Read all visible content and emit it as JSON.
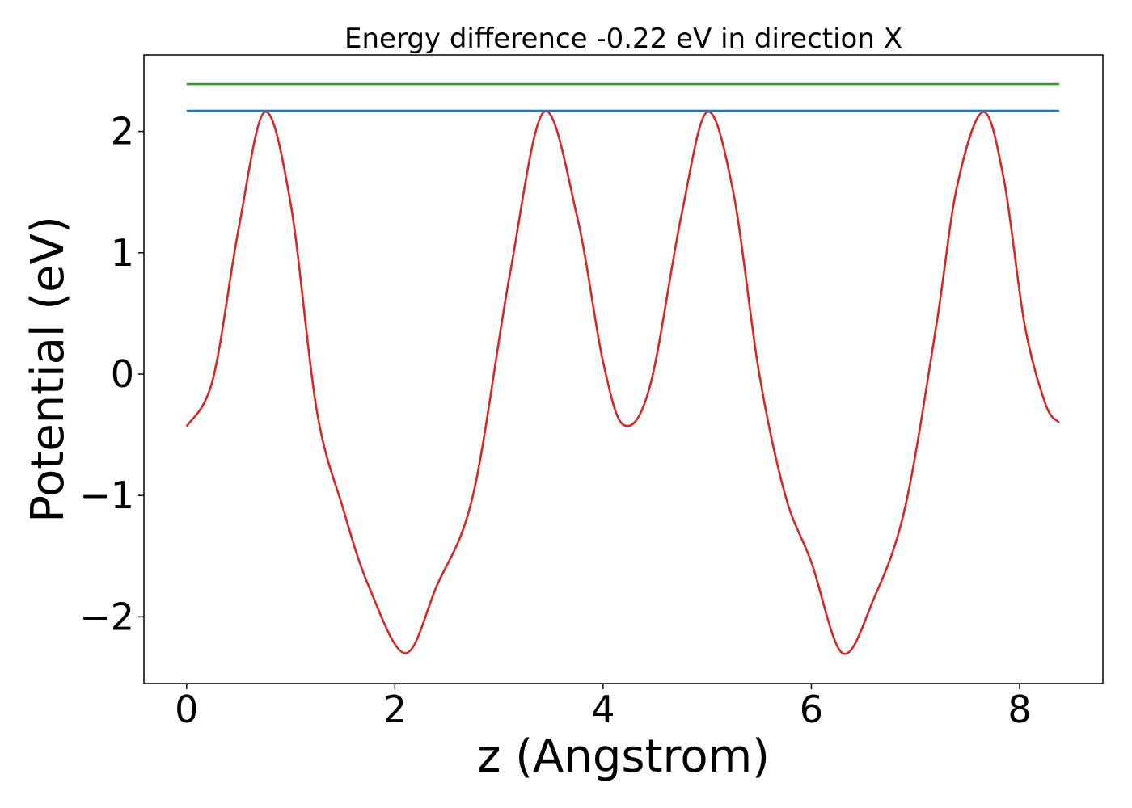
{
  "chart_data": {
    "type": "line",
    "title": "Energy difference -0.22 eV in direction X",
    "xlabel": "z (Angstrom)",
    "ylabel": "Potential (eV)",
    "xlim": [
      -0.41,
      8.8
    ],
    "ylim": [
      -2.55,
      2.63
    ],
    "xticks": [
      0,
      2,
      4,
      6,
      8
    ],
    "xtick_labels": [
      "0",
      "2",
      "4",
      "6",
      "8"
    ],
    "yticks": [
      -2,
      -1,
      0,
      1,
      2
    ],
    "ytick_labels": [
      "−2",
      "−1",
      "0",
      "1",
      "2"
    ],
    "grid": false,
    "legend": null,
    "series": [
      {
        "color": "#d62728",
        "x": [
          0,
          0.25,
          0.5,
          0.75,
          1.0,
          1.25,
          1.5,
          1.75,
          2.1,
          2.4,
          2.75,
          3.1,
          3.43,
          3.75,
          4.0,
          4.2,
          4.45,
          4.75,
          5.0,
          5.25,
          5.5,
          5.75,
          6.0,
          6.3,
          6.6,
          6.9,
          7.2,
          7.4,
          7.65,
          7.85,
          8.05,
          8.25,
          8.38
        ],
        "y": [
          -0.43,
          -0.05,
          1.2,
          2.16,
          1.4,
          -0.3,
          -1.1,
          -1.75,
          -2.3,
          -1.75,
          -1.0,
          0.8,
          2.16,
          1.3,
          0.1,
          -0.42,
          -0.1,
          1.3,
          2.16,
          1.5,
          0.0,
          -1.0,
          -1.55,
          -2.3,
          -1.85,
          -1.1,
          0.4,
          1.55,
          2.16,
          1.6,
          0.4,
          -0.25,
          -0.4
        ]
      },
      {
        "color": "#1f77b4",
        "x": [
          0,
          8.38
        ],
        "y": [
          2.17,
          2.17
        ]
      },
      {
        "color": "#2ca02c",
        "x": [
          0,
          8.38
        ],
        "y": [
          2.39,
          2.39
        ]
      }
    ]
  }
}
